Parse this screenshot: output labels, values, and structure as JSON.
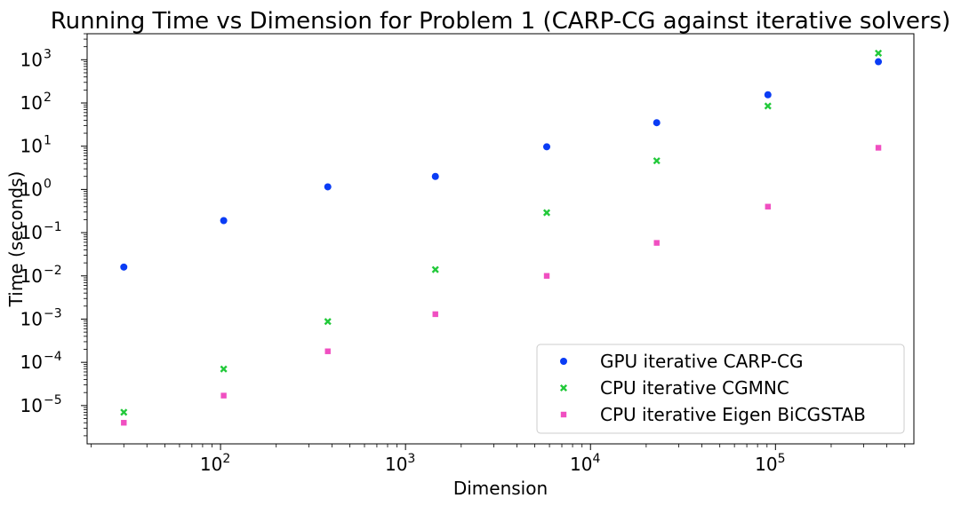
{
  "chart_data": {
    "type": "scatter",
    "title": "Running Time vs Dimension for Problem 1 (CARP-CG against iterative solvers)",
    "xlabel": "Dimension",
    "ylabel": "Time (seconds)",
    "xscale": "log",
    "yscale": "log",
    "xlim": [
      19,
      560000
    ],
    "ylim": [
      1.3e-06,
      4000
    ],
    "x_ticks": [
      {
        "value": 100,
        "base": "10",
        "exp": "2"
      },
      {
        "value": 1000,
        "base": "10",
        "exp": "3"
      },
      {
        "value": 10000,
        "base": "10",
        "exp": "4"
      },
      {
        "value": 100000,
        "base": "10",
        "exp": "5"
      }
    ],
    "y_ticks": [
      {
        "value": 1e-05,
        "base": "10",
        "exp": "−5"
      },
      {
        "value": 0.0001,
        "base": "10",
        "exp": "−4"
      },
      {
        "value": 0.001,
        "base": "10",
        "exp": "−3"
      },
      {
        "value": 0.01,
        "base": "10",
        "exp": "−2"
      },
      {
        "value": 0.1,
        "base": "10",
        "exp": "−1"
      },
      {
        "value": 1,
        "base": "10",
        "exp": "0"
      },
      {
        "value": 10,
        "base": "10",
        "exp": "1"
      },
      {
        "value": 100,
        "base": "10",
        "exp": "2"
      },
      {
        "value": 1000,
        "base": "10",
        "exp": "3"
      }
    ],
    "grid": false,
    "legend_position": "lower-right",
    "series": [
      {
        "name": "GPU iterative CARP-CG",
        "marker": "circle",
        "color": "#0a3cf5",
        "x": [
          30,
          104,
          380,
          1450,
          5800,
          22800,
          91000,
          360000
        ],
        "y": [
          0.016,
          0.19,
          1.15,
          2.0,
          9.7,
          35,
          155,
          900
        ]
      },
      {
        "name": "CPU iterative CGMNC",
        "marker": "x",
        "color": "#22c93a",
        "x": [
          30,
          104,
          380,
          1450,
          5800,
          22800,
          91000,
          360000
        ],
        "y": [
          7e-06,
          7e-05,
          0.00088,
          0.014,
          0.29,
          4.6,
          85,
          1420
        ]
      },
      {
        "name": "CPU iterative Eigen BiCGSTAB",
        "marker": "square",
        "color": "#f04fc1",
        "x": [
          30,
          104,
          380,
          1450,
          5800,
          22800,
          91000,
          360000
        ],
        "y": [
          4e-06,
          1.7e-05,
          0.00018,
          0.0013,
          0.01,
          0.058,
          0.4,
          9.2
        ]
      }
    ]
  }
}
